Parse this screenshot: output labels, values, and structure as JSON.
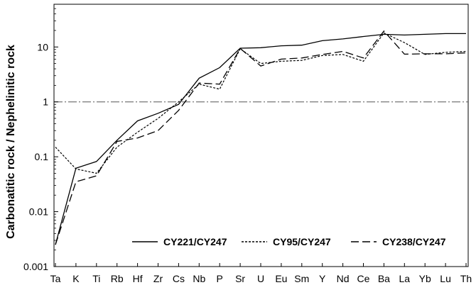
{
  "chart_data": {
    "type": "line",
    "ylabel": "Carbonatitic rock / Nephelinitic rock",
    "xlabel": "",
    "yscale": "log",
    "ylim": [
      0.001,
      60
    ],
    "y_ticks": [
      {
        "value": 0.001,
        "label": "0.001"
      },
      {
        "value": 0.01,
        "label": "0.01"
      },
      {
        "value": 0.1,
        "label": "0.1"
      },
      {
        "value": 1,
        "label": "1"
      },
      {
        "value": 10,
        "label": "10"
      }
    ],
    "categories": [
      "Ta",
      "K",
      "Ti",
      "Rb",
      "Hf",
      "Zr",
      "Cs",
      "Nb",
      "P",
      "Sr",
      "U",
      "Eu",
      "Sm",
      "Y",
      "Nd",
      "Ce",
      "Ba",
      "La",
      "Yb",
      "Lu",
      "Th"
    ],
    "reference_line": {
      "value": 1,
      "style": "dash-dot"
    },
    "legend_position": "bottom",
    "series": [
      {
        "name": "CY221/CY247",
        "style": "solid",
        "color": "#000000",
        "values": [
          0.0025,
          0.062,
          0.082,
          0.2,
          0.45,
          0.62,
          0.9,
          2.7,
          4.2,
          9.5,
          9.7,
          10.5,
          10.8,
          13,
          14,
          15.5,
          17,
          16.5,
          17,
          17.5,
          17.5
        ]
      },
      {
        "name": "CY95/CY247",
        "style": "dotted",
        "color": "#000000",
        "values": [
          0.15,
          0.06,
          0.05,
          0.15,
          0.28,
          0.5,
          1.0,
          2.1,
          1.7,
          9.3,
          5.0,
          5.5,
          5.7,
          7.0,
          7.3,
          5.5,
          18,
          12,
          7.3,
          8.0,
          8.3
        ]
      },
      {
        "name": "CY238/CY247",
        "style": "dashed",
        "color": "#000000",
        "values": [
          0.0025,
          0.035,
          0.045,
          0.19,
          0.22,
          0.3,
          0.7,
          2.2,
          2.1,
          9.4,
          4.5,
          6.0,
          6.3,
          7.3,
          8.3,
          6.3,
          19.5,
          7.4,
          7.5,
          7.5,
          7.8
        ]
      }
    ]
  }
}
